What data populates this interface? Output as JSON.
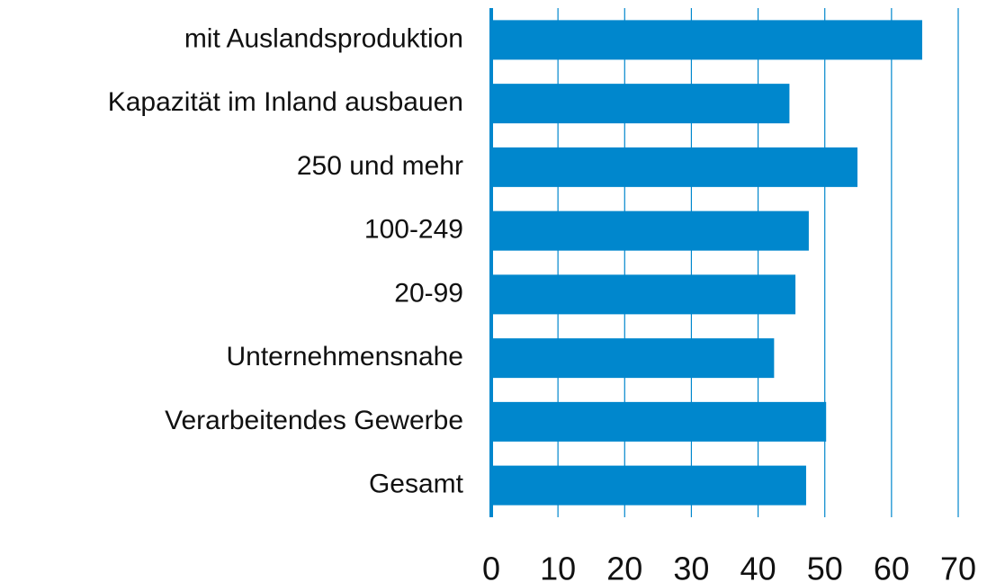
{
  "chart_data": {
    "type": "barh",
    "categories": [
      "mit Auslandsproduktion",
      "Kapazität im Inland ausbauen",
      "250 und mehr",
      "100-249",
      "20-99",
      "Unternehmensnahe",
      "Verarbeitendes Gewerbe",
      "Gesamt"
    ],
    "values": [
      64.6,
      44.7,
      54.9,
      47.6,
      45.6,
      42.4,
      50.2,
      47.2
    ],
    "color": "#0087cd",
    "xlim": [
      0,
      70
    ],
    "xticks": [
      0,
      10,
      20,
      30,
      40,
      50,
      60,
      70
    ],
    "grid": true
  }
}
